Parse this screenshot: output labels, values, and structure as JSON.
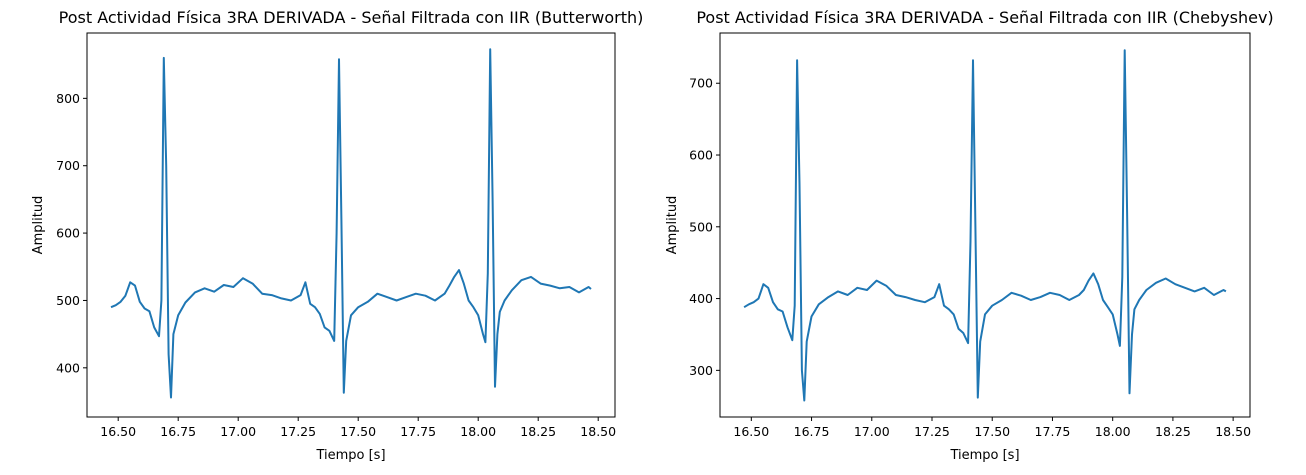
{
  "chart_data": [
    {
      "type": "line",
      "title": "Post Actividad Física 3RA DERIVADA - Señal Filtrada con IIR (Butterworth)",
      "xlabel": "Tiempo [s]",
      "ylabel": "Amplitud",
      "xlim": [
        16.37,
        18.57
      ],
      "ylim": [
        327,
        897
      ],
      "xticks": [
        "16.50",
        "16.75",
        "17.00",
        "17.25",
        "17.50",
        "17.75",
        "18.00",
        "18.25",
        "18.50"
      ],
      "yticks": [
        "400",
        "500",
        "600",
        "700",
        "800"
      ],
      "grid": false,
      "line_color": "#1f77b4",
      "series": [
        {
          "x": [
            16.47,
            16.49,
            16.51,
            16.53,
            16.55,
            16.57,
            16.59,
            16.61,
            16.63,
            16.65,
            16.67,
            16.68,
            16.69,
            16.7,
            16.71,
            16.72,
            16.73,
            16.75,
            16.78,
            16.82,
            16.86,
            16.9,
            16.94,
            16.98,
            17.02,
            17.06,
            17.1,
            17.14,
            17.18,
            17.22,
            17.26,
            17.28,
            17.3,
            17.32,
            17.34,
            17.36,
            17.38,
            17.4,
            17.41,
            17.42,
            17.43,
            17.44,
            17.45,
            17.47,
            17.5,
            17.54,
            17.58,
            17.62,
            17.66,
            17.7,
            17.74,
            17.78,
            17.82,
            17.86,
            17.88,
            17.9,
            17.92,
            17.94,
            17.96,
            17.98,
            18.0,
            18.02,
            18.03,
            18.04,
            18.05,
            18.06,
            18.07,
            18.08,
            18.09,
            18.11,
            18.14,
            18.18,
            18.22,
            18.26,
            18.3,
            18.34,
            18.38,
            18.42,
            18.46,
            18.47
          ],
          "y": [
            490,
            493,
            498,
            507,
            527,
            522,
            498,
            488,
            484,
            460,
            447,
            500,
            860,
            700,
            420,
            356,
            450,
            478,
            497,
            512,
            518,
            513,
            523,
            520,
            533,
            525,
            510,
            508,
            503,
            500,
            508,
            527,
            495,
            490,
            480,
            460,
            455,
            440,
            600,
            858,
            620,
            363,
            440,
            478,
            490,
            498,
            510,
            505,
            500,
            505,
            510,
            507,
            500,
            510,
            522,
            535,
            545,
            525,
            500,
            490,
            478,
            450,
            438,
            540,
            873,
            650,
            372,
            450,
            483,
            500,
            515,
            530,
            535,
            525,
            522,
            518,
            520,
            512,
            520,
            517
          ]
        }
      ]
    },
    {
      "type": "line",
      "title": "Post Actividad Física 3RA DERIVADA - Señal Filtrada con IIR (Chebyshev)",
      "xlabel": "Tiempo [s]",
      "ylabel": "Amplitud",
      "xlim": [
        16.37,
        18.57
      ],
      "ylim": [
        235,
        770
      ],
      "xticks": [
        "16.50",
        "16.75",
        "17.00",
        "17.25",
        "17.50",
        "17.75",
        "18.00",
        "18.25",
        "18.50"
      ],
      "yticks": [
        "300",
        "400",
        "500",
        "600",
        "700"
      ],
      "grid": false,
      "line_color": "#1f77b4",
      "series": [
        {
          "x": [
            16.47,
            16.49,
            16.51,
            16.53,
            16.55,
            16.57,
            16.59,
            16.61,
            16.63,
            16.65,
            16.67,
            16.68,
            16.69,
            16.7,
            16.71,
            16.72,
            16.73,
            16.75,
            16.78,
            16.82,
            16.86,
            16.9,
            16.94,
            16.98,
            17.02,
            17.06,
            17.1,
            17.14,
            17.18,
            17.22,
            17.26,
            17.28,
            17.3,
            17.32,
            17.34,
            17.36,
            17.38,
            17.4,
            17.41,
            17.42,
            17.43,
            17.44,
            17.45,
            17.47,
            17.5,
            17.54,
            17.58,
            17.62,
            17.66,
            17.7,
            17.74,
            17.78,
            17.82,
            17.86,
            17.88,
            17.9,
            17.92,
            17.94,
            17.96,
            17.98,
            18.0,
            18.02,
            18.03,
            18.04,
            18.05,
            18.06,
            18.07,
            18.08,
            18.09,
            18.11,
            18.14,
            18.18,
            18.22,
            18.26,
            18.3,
            18.34,
            18.38,
            18.42,
            18.46,
            18.47
          ],
          "y": [
            388,
            392,
            395,
            400,
            420,
            415,
            395,
            385,
            382,
            360,
            342,
            390,
            732,
            560,
            300,
            258,
            340,
            375,
            392,
            402,
            410,
            405,
            415,
            412,
            425,
            418,
            405,
            402,
            398,
            395,
            402,
            420,
            390,
            385,
            378,
            358,
            352,
            338,
            480,
            732,
            500,
            262,
            340,
            378,
            390,
            398,
            408,
            404,
            398,
            402,
            408,
            405,
            398,
            405,
            412,
            425,
            435,
            420,
            398,
            388,
            378,
            350,
            334,
            430,
            746,
            520,
            268,
            350,
            385,
            398,
            412,
            422,
            428,
            420,
            415,
            410,
            415,
            405,
            412,
            410
          ]
        }
      ]
    }
  ]
}
